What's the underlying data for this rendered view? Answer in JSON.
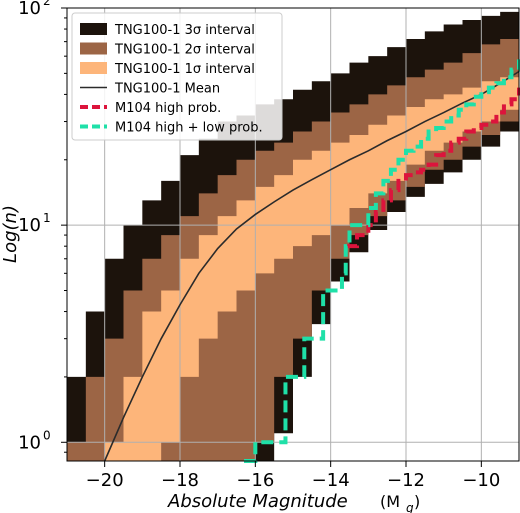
{
  "chart_data": {
    "type": "area",
    "xlabel": "Absolute Magnitude",
    "xlabel_unit": "(M",
    "xlabel_unit_sub": "g",
    "xlabel_unit_close": ")",
    "ylabel": "Log(n)",
    "xlim": [
      -21.0,
      -9.0
    ],
    "ylim": [
      0.82,
      100
    ],
    "yscale": "log",
    "grid": true,
    "legend_placement": "top-left",
    "x_ticks": [
      {
        "value": -20,
        "label": "−20"
      },
      {
        "value": -18,
        "label": "−18"
      },
      {
        "value": -16,
        "label": "−16"
      },
      {
        "value": -14,
        "label": "−14"
      },
      {
        "value": -12,
        "label": "−12"
      },
      {
        "value": -10,
        "label": "−10"
      }
    ],
    "y_ticks": [
      {
        "value": 1,
        "base": "10",
        "exp": "0"
      },
      {
        "value": 10,
        "base": "10",
        "exp": "1"
      },
      {
        "value": 100,
        "base": "10",
        "exp": "2"
      }
    ],
    "series": [
      {
        "name": "TNG100-1 3σ interval",
        "color": "#1c130c",
        "kind": "band",
        "x": [
          -21.0,
          -20.5,
          -20.0,
          -19.5,
          -19.0,
          -18.5,
          -18.0,
          -17.5,
          -17.0,
          -16.5,
          -16.0,
          -15.5,
          -15.0,
          -14.5,
          -14.0,
          -13.5,
          -13.0,
          -12.5,
          -12.0,
          -11.5,
          -11.0,
          -10.5,
          -10.0,
          -9.5,
          -9.0
        ],
        "upper": [
          2.0,
          4.0,
          7.0,
          10.0,
          13.0,
          16.0,
          21.0,
          25.0,
          30.0,
          32.0,
          36.0,
          38.0,
          42.0,
          46.0,
          50.0,
          56.0,
          60.0,
          66.0,
          72.0,
          78.0,
          84.0,
          88.0,
          92.0,
          96.0,
          100.0
        ],
        "lower": [
          0.82,
          0.82,
          0.82,
          0.82,
          0.82,
          0.82,
          0.82,
          0.82,
          0.82,
          0.82,
          0.82,
          0.82,
          1.1,
          2.0,
          3.5,
          5.5,
          7.5,
          9.5,
          11.5,
          13.5,
          15.5,
          17.5,
          20.0,
          23.0,
          27.0
        ]
      },
      {
        "name": "TNG100-1 2σ interval",
        "color": "#9c6545",
        "kind": "band",
        "x": [
          -21.0,
          -20.5,
          -20.0,
          -19.5,
          -19.0,
          -18.5,
          -18.0,
          -17.5,
          -17.0,
          -16.5,
          -16.0,
          -15.5,
          -15.0,
          -14.5,
          -14.0,
          -13.5,
          -13.0,
          -12.5,
          -12.0,
          -11.5,
          -11.0,
          -10.5,
          -10.0,
          -9.5,
          -9.0
        ],
        "upper": [
          1.0,
          2.0,
          3.0,
          5.0,
          7.0,
          9.0,
          11.0,
          14.0,
          17.0,
          20.0,
          22.0,
          24.0,
          27.0,
          30.0,
          33.0,
          36.0,
          40.0,
          44.0,
          48.0,
          52.0,
          56.0,
          62.0,
          68.0,
          72.0,
          78.0
        ],
        "lower": [
          0.82,
          0.82,
          0.82,
          0.82,
          0.82,
          0.82,
          0.82,
          0.82,
          0.82,
          0.82,
          0.82,
          1.0,
          2.0,
          3.0,
          5.0,
          7.0,
          9.0,
          11.0,
          13.0,
          15.0,
          18.0,
          20.0,
          23.0,
          26.0,
          30.0
        ]
      },
      {
        "name": "TNG100-1 1σ interval",
        "color": "#fdb57a",
        "kind": "band",
        "x": [
          -21.0,
          -20.5,
          -20.0,
          -19.5,
          -19.0,
          -18.5,
          -18.0,
          -17.5,
          -17.0,
          -16.5,
          -16.0,
          -15.5,
          -15.0,
          -14.5,
          -14.0,
          -13.5,
          -13.0,
          -12.5,
          -12.0,
          -11.5,
          -11.0,
          -10.5,
          -10.0,
          -9.5,
          -9.0
        ],
        "upper": [
          0.82,
          0.82,
          1.0,
          2.0,
          4.0,
          5.0,
          7.0,
          9.0,
          11.0,
          13.0,
          15.0,
          17.0,
          20.0,
          22.0,
          24.0,
          26.0,
          29.0,
          32.0,
          35.0,
          38.0,
          40.0,
          43.0,
          46.0,
          48.0,
          50.0
        ],
        "lower": [
          0.82,
          0.82,
          0.82,
          0.82,
          0.82,
          0.82,
          1.0,
          2.0,
          3.0,
          4.0,
          5.0,
          6.0,
          7.0,
          8.0,
          9.0,
          10.0,
          12.0,
          14.0,
          16.0,
          19.0,
          22.0,
          24.0,
          27.0,
          30.0,
          34.0
        ]
      },
      {
        "name": "TNG100-1 Mean",
        "color": "#2b2b2b",
        "kind": "line",
        "x": [
          -20.0,
          -19.5,
          -19.0,
          -18.5,
          -18.0,
          -17.5,
          -17.0,
          -16.5,
          -16.0,
          -15.5,
          -15.0,
          -14.5,
          -14.0,
          -13.5,
          -13.0,
          -12.5,
          -12.0,
          -11.5,
          -11.0,
          -10.5,
          -10.0,
          -9.5,
          -9.0
        ],
        "y": [
          0.82,
          1.3,
          2.0,
          3.0,
          4.3,
          6.0,
          7.8,
          9.6,
          11.2,
          12.8,
          14.5,
          16.2,
          18.0,
          20.0,
          22.0,
          24.5,
          27.0,
          30.0,
          33.0,
          36.5,
          40.0,
          45.0,
          51.0
        ]
      },
      {
        "name": "M104 high prob.",
        "color": "#dc143c",
        "kind": "dashed",
        "x": [
          -13.6,
          -13.3,
          -13.0,
          -12.8,
          -12.6,
          -12.4,
          -12.2,
          -12.0,
          -11.8,
          -11.6,
          -11.4,
          -11.2,
          -11.0,
          -10.8,
          -10.6,
          -10.4,
          -10.2,
          -10.0,
          -9.8,
          -9.6,
          -9.4,
          -9.2,
          -9.0
        ],
        "y": [
          8.0,
          9.0,
          10.0,
          11.5,
          13.0,
          14.5,
          16.0,
          17.0,
          17.5,
          18.0,
          19.0,
          21.0,
          22.0,
          24.0,
          25.0,
          27.0,
          28.0,
          29.0,
          30.0,
          33.0,
          36.0,
          38.0,
          43.0
        ]
      },
      {
        "name": "M104 high + low prob.",
        "color": "#1fe0a8",
        "kind": "dashed",
        "x": [
          -16.3,
          -16.0,
          -15.7,
          -15.2,
          -15.0,
          -14.7,
          -14.5,
          -14.2,
          -14.0,
          -13.7,
          -13.6,
          -13.5,
          -13.3,
          -13.0,
          -12.8,
          -12.6,
          -12.4,
          -12.2,
          -12.0,
          -11.8,
          -11.6,
          -11.4,
          -11.2,
          -11.0,
          -10.8,
          -10.6,
          -10.4,
          -10.2,
          -10.0,
          -9.8,
          -9.6,
          -9.4,
          -9.2,
          -9.0
        ],
        "y": [
          0.82,
          1.0,
          1.0,
          2.0,
          2.0,
          3.0,
          3.0,
          5.0,
          5.0,
          6.0,
          8.0,
          10.0,
          10.0,
          12.0,
          14.0,
          16.0,
          18.0,
          20.0,
          22.0,
          23.0,
          25.0,
          27.0,
          28.0,
          30.0,
          32.0,
          34.0,
          36.0,
          39.0,
          41.0,
          43.0,
          45.0,
          48.0,
          52.0,
          58.0
        ]
      }
    ]
  }
}
